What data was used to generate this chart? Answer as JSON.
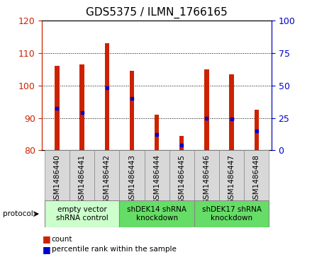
{
  "title": "GDS5375 / ILMN_1766165",
  "samples": [
    "GSM1486440",
    "GSM1486441",
    "GSM1486442",
    "GSM1486443",
    "GSM1486444",
    "GSM1486445",
    "GSM1486446",
    "GSM1486447",
    "GSM1486448"
  ],
  "bar_bottoms": [
    80,
    80,
    80,
    80,
    80,
    80,
    80,
    80,
    80
  ],
  "bar_tops": [
    106,
    106.5,
    113,
    104.5,
    91,
    84.5,
    105,
    103.5,
    92.5
  ],
  "percentile_values": [
    32.5,
    29,
    48,
    40,
    12,
    4,
    25,
    24,
    15
  ],
  "bar_color": "#cc2200",
  "dot_color": "#0000cc",
  "ylim_left": [
    80,
    120
  ],
  "ylim_right": [
    0,
    100
  ],
  "yticks_left": [
    80,
    90,
    100,
    110,
    120
  ],
  "yticks_right": [
    0,
    25,
    50,
    75,
    100
  ],
  "groups": [
    {
      "label": "empty vector\nshRNA control",
      "start": 0,
      "end": 3,
      "color": "#ccffcc"
    },
    {
      "label": "shDEK14 shRNA\nknockdown",
      "start": 3,
      "end": 6,
      "color": "#66dd66"
    },
    {
      "label": "shDEK17 shRNA\nknockdown",
      "start": 6,
      "end": 9,
      "color": "#66dd66"
    }
  ],
  "protocol_label": "protocol",
  "legend_items": [
    {
      "label": "count",
      "color": "#cc2200"
    },
    {
      "label": "percentile rank within the sample",
      "color": "#0000cc"
    }
  ],
  "bar_width": 0.18,
  "title_fontsize": 11,
  "tick_label_fontsize": 7.5,
  "sample_box_color": "#d8d8d8",
  "left_axis_color": "#cc2200",
  "right_axis_color": "#0000cc"
}
